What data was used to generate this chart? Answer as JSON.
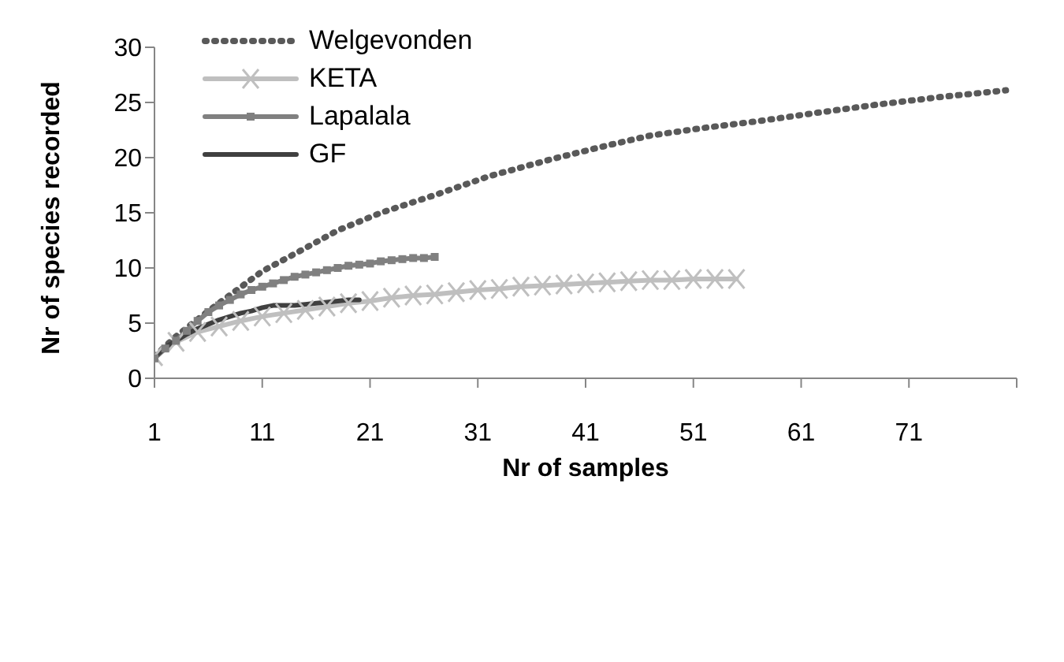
{
  "chart_data": {
    "type": "line",
    "xlabel": "Nr of samples",
    "ylabel": "Nr of species recorded",
    "xlim": [
      1,
      81
    ],
    "xticks": [
      1,
      11,
      21,
      31,
      41,
      51,
      61,
      71,
      {
        "value": 81,
        "label": null
      }
    ],
    "ylim": [
      0,
      30
    ],
    "yticks": [
      0,
      5,
      10,
      15,
      20,
      25,
      30
    ],
    "grid": false,
    "legend": "top left",
    "series": [
      {
        "name": "Welgevonden",
        "color": "#595959",
        "line_style": "dotted",
        "marker": "none",
        "x": [
          1,
          3,
          6,
          11,
          15,
          18,
          22,
          27,
          32,
          38,
          43,
          47,
          52,
          57,
          62,
          68,
          74,
          80
        ],
        "values": [
          2,
          3.8,
          6.1,
          9.7,
          11.8,
          13.4,
          15,
          16.6,
          18.3,
          19.9,
          21.1,
          22,
          22.7,
          23.3,
          24,
          24.8,
          25.5,
          26.1
        ]
      },
      {
        "name": "KETA",
        "color": "#bfbfbf",
        "line_style": "solid",
        "marker": "cross",
        "x": [
          1,
          3,
          5,
          7,
          9,
          11,
          13,
          15,
          17,
          19,
          21,
          23,
          25,
          27,
          29,
          31,
          33,
          35,
          37,
          39,
          41,
          43,
          45,
          47,
          49,
          51,
          53,
          55
        ],
        "values": [
          2,
          3.3,
          4.2,
          4.7,
          5.2,
          5.6,
          5.9,
          6.2,
          6.5,
          6.8,
          7,
          7.3,
          7.5,
          7.6,
          7.8,
          8,
          8.1,
          8.3,
          8.4,
          8.5,
          8.6,
          8.7,
          8.8,
          8.9,
          8.9,
          9,
          9,
          9
        ]
      },
      {
        "name": "Lapalala",
        "color": "#808080",
        "line_style": "solid",
        "marker": "square",
        "x": [
          1,
          2,
          3,
          4,
          5,
          6,
          7,
          8,
          9,
          10,
          11,
          12,
          13,
          14,
          15,
          16,
          17,
          18,
          19,
          20,
          21,
          22,
          23,
          24,
          25,
          26,
          27
        ],
        "values": [
          1.8,
          2.7,
          3.4,
          4.3,
          5.2,
          6,
          6.6,
          7.1,
          7.6,
          8,
          8.3,
          8.6,
          8.9,
          9.2,
          9.4,
          9.6,
          9.8,
          10,
          10.2,
          10.3,
          10.4,
          10.6,
          10.7,
          10.8,
          10.9,
          10.9,
          11
        ]
      },
      {
        "name": "GF",
        "color": "#404040",
        "line_style": "solid",
        "marker": "none",
        "x": [
          1,
          2,
          3,
          4,
          5,
          6,
          7,
          8,
          9,
          10,
          11,
          12,
          13,
          14,
          15,
          16,
          17,
          18,
          19,
          20
        ],
        "values": [
          1.9,
          2.8,
          3.4,
          4,
          4.5,
          4.9,
          5.3,
          5.6,
          5.9,
          6.1,
          6.4,
          6.6,
          6.6,
          6.6,
          6.7,
          6.8,
          6.9,
          7,
          7.1,
          7.1
        ]
      }
    ]
  }
}
